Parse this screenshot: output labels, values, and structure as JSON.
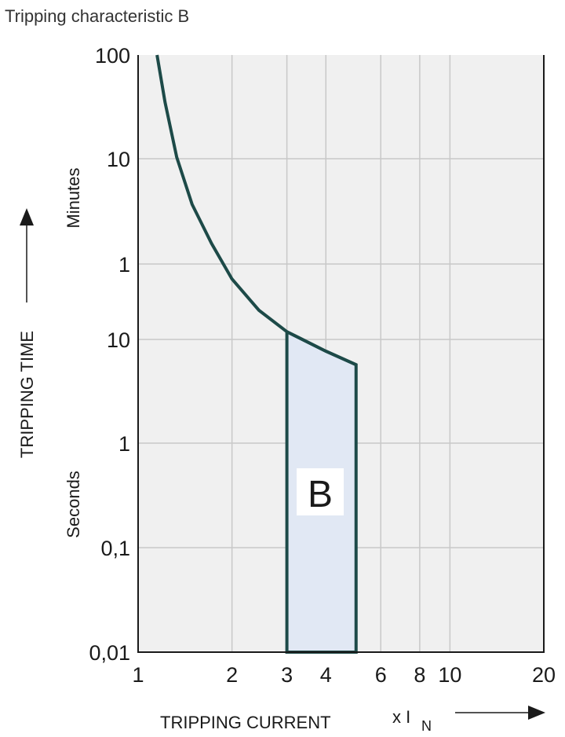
{
  "chart_data": {
    "type": "line",
    "title": "Tripping characteristic B",
    "xlabel": "TRIPPING CURRENT",
    "xunit": "x I",
    "xunit_sub": "N",
    "ylabel": "TRIPPING TIME",
    "y_unit_labels": [
      "Minutes",
      "Seconds"
    ],
    "x_scale": "log",
    "y_scale": "log",
    "xlim": [
      1,
      20
    ],
    "ylim_seconds": [
      0.01,
      6000
    ],
    "grid": true,
    "x_ticks": [
      {
        "value": 1,
        "label": "1"
      },
      {
        "value": 2,
        "label": "2"
      },
      {
        "value": 3,
        "label": "3"
      },
      {
        "value": 4,
        "label": "4"
      },
      {
        "value": 6,
        "label": "6"
      },
      {
        "value": 8,
        "label": "8"
      },
      {
        "value": 10,
        "label": "10"
      },
      {
        "value": 20,
        "label": "20"
      }
    ],
    "y_ticks": [
      {
        "seconds": 6000,
        "label": "100"
      },
      {
        "seconds": 600,
        "label": "10"
      },
      {
        "seconds": 60,
        "label": "1"
      },
      {
        "seconds": 10,
        "label": "10"
      },
      {
        "seconds": 1,
        "label": "1"
      },
      {
        "seconds": 0.1,
        "label": "0,1"
      },
      {
        "seconds": 0.01,
        "label": "0,01"
      }
    ],
    "curve": {
      "x": [
        1.15,
        1.22,
        1.33,
        1.49,
        1.72,
        2.0,
        2.44,
        3,
        4,
        5
      ],
      "y_seconds": [
        6000,
        2100,
        620,
        221,
        94,
        42,
        20,
        12,
        7.7,
        5.7
      ]
    },
    "region": {
      "label": "B",
      "x_from": 3,
      "x_to": 5,
      "y_bottom_seconds": 0.01
    },
    "colors": {
      "curve": "#1d4a48",
      "region_fill": "#e1e8f4",
      "plot_bg": "#f0f0f0",
      "grid": "#c8c8c8"
    }
  }
}
